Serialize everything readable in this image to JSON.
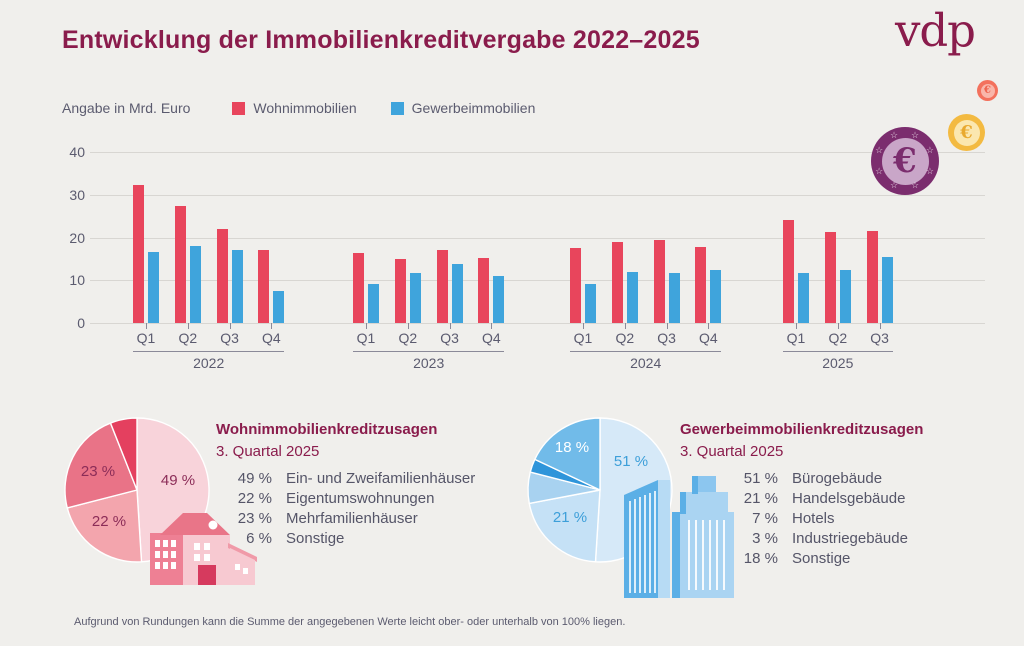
{
  "header": {
    "title": "Entwicklung der Immobilienkreditvergabe 2022–2025",
    "brand": "vdp"
  },
  "legend": {
    "unit_label": "Angabe in Mrd. Euro",
    "series": [
      {
        "label": "Wohnimmobilien",
        "color": "#e8455c"
      },
      {
        "label": "Gewerbeimmobilien",
        "color": "#3fa4dc"
      }
    ]
  },
  "chart_data": [
    {
      "type": "bar",
      "title": "Entwicklung der Immobilienkreditvergabe 2022–2025",
      "unit": "Mrd. Euro",
      "ylim": [
        0,
        40
      ],
      "yticks": [
        0,
        10,
        20,
        30,
        40
      ],
      "series_names": [
        "Wohnimmobilien",
        "Gewerbeimmobilien"
      ],
      "groups": [
        {
          "year": "2022",
          "quarters": [
            "Q1",
            "Q2",
            "Q3",
            "Q4"
          ],
          "wohnimmobilien": [
            32.3,
            27.4,
            21.9,
            17.0
          ],
          "gewerbeimmobilien": [
            16.6,
            18.0,
            17.2,
            7.5
          ]
        },
        {
          "year": "2023",
          "quarters": [
            "Q1",
            "Q2",
            "Q3",
            "Q4"
          ],
          "wohnimmobilien": [
            16.4,
            15.0,
            17.2,
            15.1
          ],
          "gewerbeimmobilien": [
            9.1,
            11.8,
            13.7,
            10.9
          ]
        },
        {
          "year": "2024",
          "quarters": [
            "Q1",
            "Q2",
            "Q3",
            "Q4"
          ],
          "wohnimmobilien": [
            17.6,
            19.0,
            19.4,
            17.8
          ],
          "gewerbeimmobilien": [
            9.1,
            11.9,
            11.7,
            12.3
          ]
        },
        {
          "year": "2025",
          "quarters": [
            "Q1",
            "Q2",
            "Q3"
          ],
          "wohnimmobilien": [
            24.1,
            21.3,
            21.6
          ],
          "gewerbeimmobilien": [
            11.6,
            12.3,
            15.4
          ]
        }
      ]
    },
    {
      "type": "pie",
      "title": "Wohnimmobilienkreditzusagen",
      "subtitle": "3. Quartal 2025",
      "slices": [
        {
          "label": "Ein- und Zweifamilienhäuser",
          "pct_label": "49 %",
          "value": 49,
          "color": "#f8d3da",
          "show_in_pie": true
        },
        {
          "label": "Eigentumswohnungen",
          "pct_label": "22 %",
          "value": 22,
          "color": "#f3a5ad",
          "show_in_pie": true
        },
        {
          "label": "Mehrfamilienhäuser",
          "pct_label": "23 %",
          "value": 23,
          "color": "#e97387",
          "show_in_pie": true
        },
        {
          "label": "Sonstige",
          "pct_label": "6 %",
          "value": 6,
          "color": "#e4405f",
          "show_in_pie": false
        }
      ]
    },
    {
      "type": "pie",
      "title": "Gewerbeimmobilienkreditzusagen",
      "subtitle": "3. Quartal 2025",
      "slices": [
        {
          "label": "Bürogebäude",
          "pct_label": "51 %",
          "value": 51,
          "color": "#d6e9f8",
          "show_in_pie": true
        },
        {
          "label": "Handelsgebäude",
          "pct_label": "21 %",
          "value": 21,
          "color": "#c5e1f6",
          "show_in_pie": true
        },
        {
          "label": "Hotels",
          "pct_label": "7 %",
          "value": 7,
          "color": "#a8d2f0",
          "show_in_pie": false
        },
        {
          "label": "Industriegebäude",
          "pct_label": "3 %",
          "value": 3,
          "color": "#2f95da",
          "show_in_pie": false
        },
        {
          "label": "Sonstige",
          "pct_label": "18 %",
          "value": 18,
          "color": "#71bbe9",
          "show_in_pie": true
        }
      ]
    }
  ],
  "footnote": "Aufgrund von Rundungen kann die Summe der angegebenen Werte leicht ober- oder unterhalb von 100% liegen.",
  "icons": {
    "euro": "€"
  },
  "colors": {
    "background": "#f0efec",
    "accent_maroon": "#8a1c4c",
    "bar_red": "#e8455c",
    "bar_blue": "#3fa4dc",
    "text_gray": "#5b5b6f"
  }
}
